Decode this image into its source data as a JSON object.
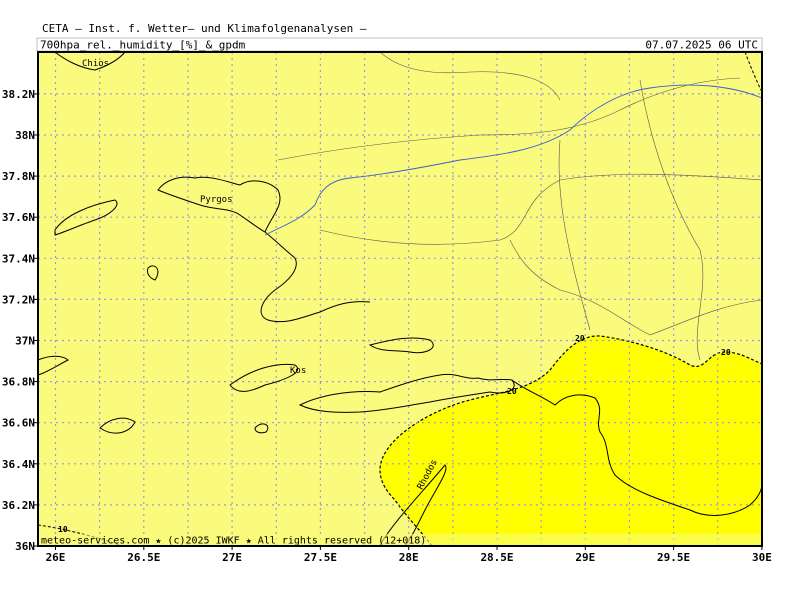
{
  "header": {
    "institute": "CETA — Inst. f. Wetter— und Klimafolgenanalysen —",
    "product": "700hpa_rel._humidity_[%]_&_gpdm",
    "valid_time": "07.07.2025 06 UTC"
  },
  "map": {
    "lon_ticks": [
      "26E",
      "26.5E",
      "27E",
      "27.5E",
      "28E",
      "28.5E",
      "29E",
      "29.5E",
      "30E"
    ],
    "lat_ticks": [
      "36N",
      "36.2N",
      "36.4N",
      "36.6N",
      "36.8N",
      "37N",
      "37.2N",
      "37.4N",
      "37.6N",
      "37.8N",
      "38N",
      "38.2N"
    ],
    "places": [
      "Chios",
      "Pyrgos",
      "Kos",
      "Rhodos"
    ],
    "contour_labels": [
      "20",
      "20",
      "20",
      "10"
    ]
  },
  "footer": "meteo-services.com ★ (c)2025 IWKF ★ All rights reserved (12+018)"
}
